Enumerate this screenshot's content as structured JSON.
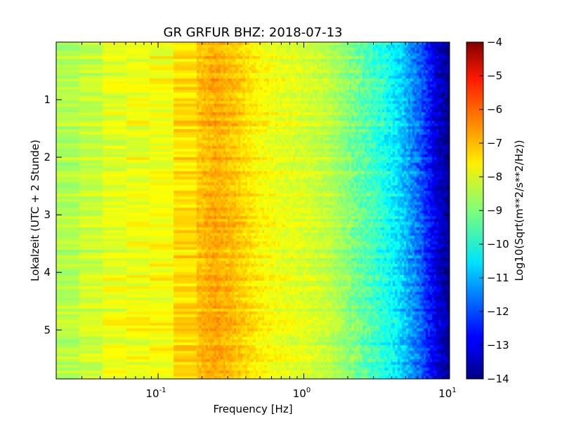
{
  "chart_data": {
    "type": "heatmap",
    "title": "GR GRFUR BHZ: 2018-07-13",
    "xlabel": "Frequency [Hz]",
    "ylabel": "Lokalzeit (UTC + 2 Stunde)",
    "x_scale": "log",
    "xlim": [
      0.02,
      10
    ],
    "ylim": [
      5.85,
      0
    ],
    "y_inverted": true,
    "x_ticks": [
      {
        "base": "10",
        "exp": "-1",
        "value": 0.1
      },
      {
        "base": "10",
        "exp": "0",
        "value": 1
      },
      {
        "base": "10",
        "exp": "1",
        "value": 10
      }
    ],
    "y_ticks": [
      {
        "label": "1",
        "value": 1
      },
      {
        "label": "2",
        "value": 2
      },
      {
        "label": "3",
        "value": 3
      },
      {
        "label": "4",
        "value": 4
      },
      {
        "label": "5",
        "value": 5
      }
    ],
    "colormap": "jet",
    "colorbar": {
      "label": "Log10(Sqrt(m**2/s**2/Hz))",
      "range": [
        -14,
        -4
      ],
      "ticks": [
        "-4",
        "-5",
        "-6",
        "-7",
        "-8",
        "-9",
        "-10",
        "-11",
        "-12",
        "-13",
        "-14"
      ]
    },
    "spectrum_profile": {
      "freq_hz": [
        0.02,
        0.03,
        0.05,
        0.08,
        0.12,
        0.18,
        0.25,
        0.35,
        0.5,
        0.7,
        1.0,
        1.5,
        2.0,
        3.0,
        4.0,
        5.0,
        6.0,
        7.0,
        8.0,
        9.0,
        10.0
      ],
      "value": [
        -8.6,
        -8.4,
        -8.0,
        -7.9,
        -7.8,
        -7.2,
        -6.9,
        -7.2,
        -7.7,
        -7.95,
        -8.1,
        -8.4,
        -8.9,
        -9.6,
        -10.2,
        -10.9,
        -11.6,
        -12.3,
        -13.0,
        -13.5,
        -13.8
      ]
    }
  }
}
